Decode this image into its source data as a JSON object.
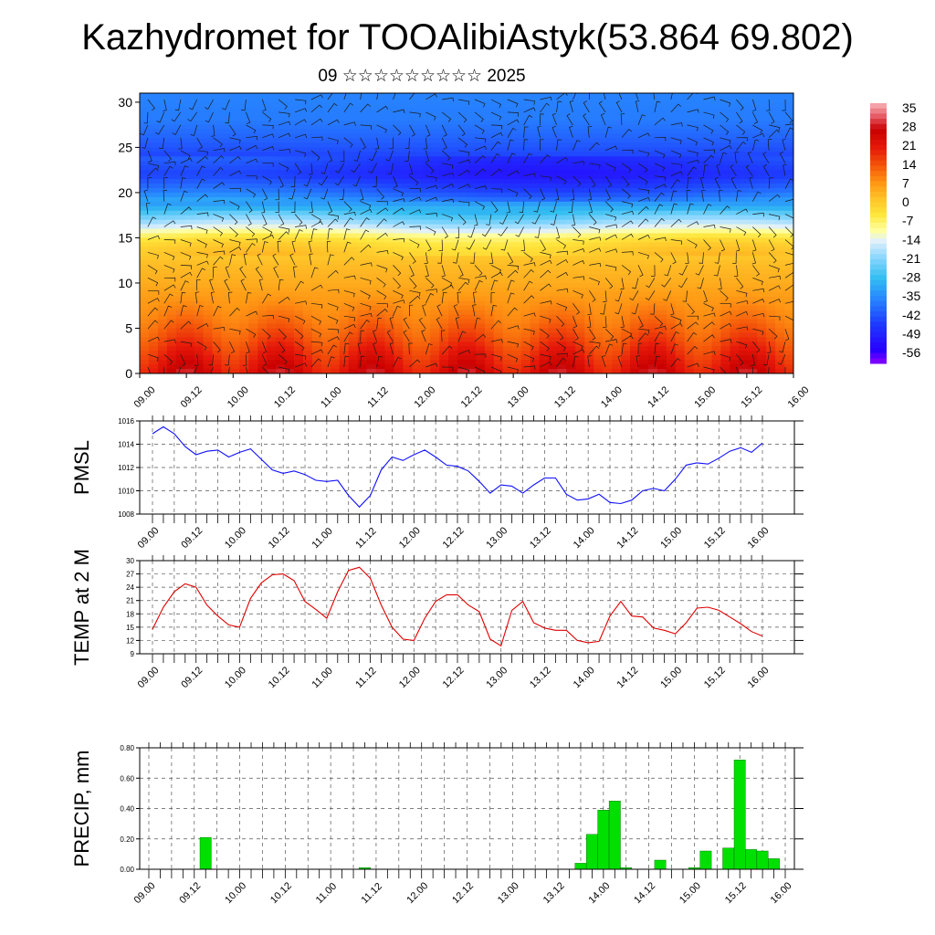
{
  "title": "Kazhydromet for TOOAlibiAstyk(53.864 69.802)",
  "subtitle": "09 ☆☆☆☆☆☆☆☆☆ 2025",
  "colors": {
    "pmsl_line": "#1010ff",
    "temp_line": "#e00000",
    "precip_bar": "#00e000",
    "frame": "#000000"
  },
  "chart_data": [
    {
      "type": "heatmap",
      "name": "",
      "x_tick_labels": [
        "09.00",
        "09.12",
        "10.00",
        "10.12",
        "11.00",
        "11.12",
        "12.00",
        "12.12",
        "13.00",
        "13.12",
        "14.00",
        "14.12",
        "15.00",
        "15.12",
        "16.00"
      ],
      "y_ticks": [
        0,
        5,
        10,
        15,
        20,
        25,
        30
      ],
      "ylim": [
        0,
        31
      ],
      "colorbar_labels": [
        "35",
        "28",
        "21",
        "14",
        "7",
        "0",
        "-7",
        "-14",
        "-21",
        "-28",
        "-35",
        "-42",
        "-49",
        "-56"
      ],
      "colorbar_range": [
        -60,
        38
      ],
      "overlay": "wind barbs",
      "temperature_profile": {
        "levels": [
          0,
          2,
          4,
          6,
          8,
          10,
          12,
          14,
          15,
          16,
          18,
          20,
          22,
          24,
          26,
          28,
          31
        ],
        "values": [
          25,
          20,
          15,
          11,
          8,
          5,
          3,
          -1,
          -5,
          -14,
          -28,
          -40,
          -48,
          -44,
          -40,
          -37,
          -36
        ]
      }
    },
    {
      "type": "line",
      "ylabel": "PMSL",
      "ylim": [
        1008,
        1016
      ],
      "y_ticks": [
        1008,
        1010,
        1012,
        1014,
        1016
      ],
      "x_tick_labels": [
        "09.00",
        "09.12",
        "10.00",
        "10.12",
        "11.00",
        "11.12",
        "12.00",
        "12.12",
        "13.00",
        "13.12",
        "14.00",
        "14.12",
        "15.00",
        "15.12",
        "16.00"
      ],
      "x_step_hours": 3,
      "values": [
        1014.9,
        1015.5,
        1014.9,
        1013.8,
        1013.1,
        1013.4,
        1013.5,
        1012.9,
        1013.3,
        1013.6,
        1012.7,
        1011.8,
        1011.5,
        1011.7,
        1011.4,
        1010.9,
        1010.8,
        1010.9,
        1009.6,
        1008.6,
        1009.6,
        1011.8,
        1012.9,
        1012.6,
        1013.1,
        1013.5,
        1012.9,
        1012.2,
        1012.1,
        1011.7,
        1010.8,
        1009.8,
        1010.5,
        1010.4,
        1009.8,
        1010.5,
        1011.1,
        1011.1,
        1009.7,
        1009.2,
        1009.3,
        1009.7,
        1009.0,
        1008.9,
        1009.2,
        1010.0,
        1010.2,
        1010.0,
        1011.0,
        1012.2,
        1012.4,
        1012.3,
        1012.8,
        1013.4,
        1013.7,
        1013.3,
        1014.1
      ]
    },
    {
      "type": "line",
      "ylabel": "TEMP at 2 M",
      "ylim": [
        9,
        30
      ],
      "y_ticks": [
        9,
        12,
        15,
        18,
        21,
        24,
        27,
        30
      ],
      "x_tick_labels": [
        "09.00",
        "09.12",
        "10.00",
        "10.12",
        "11.00",
        "11.12",
        "12.00",
        "12.12",
        "13.00",
        "13.12",
        "14.00",
        "14.12",
        "15.00",
        "15.12",
        "16.00"
      ],
      "x_step_hours": 3,
      "values": [
        14.5,
        19.5,
        23.0,
        24.8,
        24.0,
        20.0,
        17.5,
        15.5,
        15.0,
        21.5,
        25.0,
        26.8,
        27.0,
        25.5,
        20.8,
        19.0,
        17.0,
        23.0,
        27.8,
        28.5,
        26.0,
        20.0,
        15.0,
        12.3,
        12.0,
        17.0,
        20.8,
        22.3,
        22.3,
        20.0,
        18.5,
        12.3,
        10.8,
        18.8,
        20.8,
        16.0,
        14.8,
        14.3,
        14.3,
        12.0,
        11.5,
        11.8,
        17.5,
        20.8,
        17.5,
        17.3,
        14.8,
        14.3,
        13.5,
        16.0,
        19.3,
        19.5,
        18.8,
        17.3,
        15.8,
        14.0,
        13.0
      ]
    },
    {
      "type": "bar",
      "ylabel": "PRECIP, mm",
      "ylim": [
        0,
        0.8
      ],
      "y_tick_labels": [
        "0.00",
        "0.20",
        "0.40",
        "0.60",
        "0.80"
      ],
      "x_tick_labels": [
        "09.00",
        "09.12",
        "10.00",
        "10.12",
        "11.00",
        "11.12",
        "12.00",
        "12.12",
        "13.00",
        "13.12",
        "14.00",
        "14.12",
        "15.00",
        "15.12",
        "16.00"
      ],
      "x_step_hours": 3,
      "values": [
        0,
        0,
        0,
        0,
        0,
        0.21,
        0,
        0,
        0,
        0,
        0,
        0,
        0,
        0,
        0,
        0,
        0,
        0,
        0,
        0.01,
        0,
        0,
        0,
        0,
        0,
        0,
        0,
        0,
        0,
        0,
        0,
        0,
        0,
        0,
        0,
        0,
        0,
        0,
        0.04,
        0.23,
        0.39,
        0.45,
        0.01,
        0,
        0,
        0.06,
        0,
        0,
        0.01,
        0.12,
        0,
        0.14,
        0.72,
        0.13,
        0.12,
        0.07,
        0
      ]
    }
  ]
}
